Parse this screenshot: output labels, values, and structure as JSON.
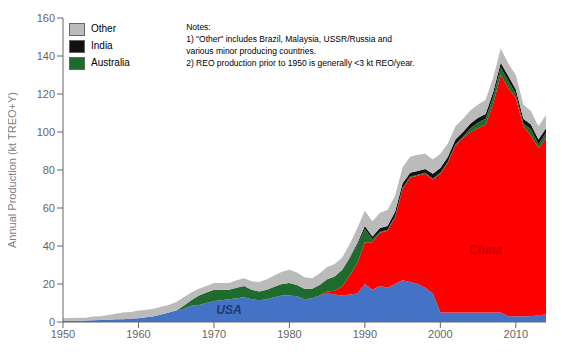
{
  "chart_data": {
    "type": "area",
    "stacked": true,
    "ylabel": "Annual  Production (kt TREO+Y)",
    "x": [
      1950,
      1951,
      1952,
      1953,
      1954,
      1955,
      1956,
      1957,
      1958,
      1959,
      1960,
      1961,
      1962,
      1963,
      1964,
      1965,
      1966,
      1967,
      1968,
      1969,
      1970,
      1971,
      1972,
      1973,
      1974,
      1975,
      1976,
      1977,
      1978,
      1979,
      1980,
      1981,
      1982,
      1983,
      1984,
      1985,
      1986,
      1987,
      1988,
      1989,
      1990,
      1991,
      1992,
      1993,
      1994,
      1995,
      1996,
      1997,
      1998,
      1999,
      2000,
      2001,
      2002,
      2003,
      2004,
      2005,
      2006,
      2007,
      2008,
      2009,
      2010,
      2011,
      2012,
      2013,
      2014
    ],
    "xlim": [
      1950,
      2014
    ],
    "xticks": [
      1950,
      1960,
      1970,
      1980,
      1990,
      2000,
      2010
    ],
    "ylim": [
      0,
      160
    ],
    "yticks": [
      0,
      20,
      40,
      60,
      80,
      100,
      120,
      140,
      160
    ],
    "grid": false,
    "legend": "upper left",
    "series": [
      {
        "color": "#4472C4",
        "values": [
          0.5,
          0.6,
          0.7,
          0.8,
          0.9,
          1.0,
          1.2,
          1.4,
          1.5,
          1.8,
          2.0,
          2.5,
          3.0,
          4.0,
          5.0,
          6.0,
          7.0,
          8.5,
          9.0,
          10.0,
          11.0,
          11.5,
          12.0,
          12.5,
          13.0,
          12.0,
          11.5,
          12.0,
          13.0,
          14.0,
          14.0,
          13.5,
          12.0,
          12.5,
          14.0,
          15.0,
          14.5,
          14.0,
          14.5,
          15.0,
          20.0,
          17.0,
          19.0,
          18.0,
          20.0,
          22.0,
          21.0,
          20.0,
          18.0,
          15.0,
          5.0,
          5.0,
          5.0,
          5.0,
          5.0,
          5.0,
          5.0,
          5.0,
          5.0,
          3.0,
          3.0,
          3.0,
          3.0,
          3.5,
          4.0
        ]
      },
      {
        "color": "#FF0000",
        "values": [
          0,
          0,
          0,
          0,
          0,
          0,
          0,
          0,
          0,
          0,
          0,
          0,
          0,
          0,
          0,
          0,
          0,
          0,
          0,
          0,
          0,
          0,
          0,
          0,
          0,
          0,
          0,
          0,
          0,
          0,
          0,
          0,
          0,
          0,
          0,
          1.0,
          2.0,
          5.0,
          10.0,
          16.0,
          22.0,
          25.0,
          28.0,
          30.0,
          35.0,
          48.0,
          55.0,
          57.0,
          60.0,
          60.0,
          73.0,
          79.0,
          88.0,
          92.0,
          95.0,
          97.0,
          99.0,
          110.0,
          125.0,
          120.0,
          115.0,
          100.0,
          95.0,
          88.0,
          93.0
        ]
      },
      {
        "name": "Australia",
        "color": "#1F6B2E",
        "values": [
          0,
          0,
          0,
          0,
          0,
          0,
          0,
          0,
          0,
          0,
          0,
          0,
          0,
          0,
          0,
          0,
          1.5,
          3.0,
          5.0,
          5.5,
          6.0,
          5.5,
          5.0,
          5.5,
          6.0,
          5.0,
          4.5,
          5.0,
          5.5,
          6.0,
          6.5,
          6.0,
          5.5,
          5.0,
          5.5,
          6.5,
          7.5,
          8.5,
          9.0,
          9.5,
          7.0,
          1.5,
          0.5,
          0.5,
          0.5,
          0.5,
          0.5,
          0.5,
          0.5,
          0.5,
          0.5,
          0.5,
          0.5,
          0.5,
          2.0,
          3.0,
          3.0,
          3.5,
          4.0,
          4.0,
          2.0,
          1.5,
          3.5,
          2.0,
          2.5
        ]
      },
      {
        "name": "India",
        "color": "#111111",
        "values": [
          0,
          0,
          0,
          0,
          0,
          0,
          0,
          0,
          0,
          0,
          0,
          0,
          0,
          0,
          0,
          0,
          0,
          0,
          0,
          0,
          0,
          0,
          0,
          0,
          0,
          0,
          0,
          0,
          0,
          0,
          0,
          0,
          0,
          0,
          0,
          0,
          0,
          0,
          0.5,
          1.0,
          1.5,
          1.5,
          2.0,
          2.0,
          2.5,
          2.5,
          2.0,
          2.0,
          2.0,
          2.5,
          2.5,
          2.5,
          2.5,
          2.5,
          2.5,
          2.5,
          2.5,
          2.5,
          2.5,
          2.5,
          2.5,
          2.5,
          2.5,
          2.5,
          2.5
        ]
      },
      {
        "name": "Other",
        "color": "#BBBBBB",
        "values": [
          1.5,
          1.5,
          1.5,
          1.5,
          2.0,
          2.0,
          2.5,
          3.0,
          3.5,
          3.5,
          4.0,
          4.0,
          4.0,
          4.0,
          4.0,
          4.5,
          4.5,
          4.0,
          3.5,
          3.5,
          3.5,
          3.5,
          3.5,
          4.0,
          4.0,
          4.5,
          5.0,
          5.5,
          6.0,
          6.5,
          7.0,
          6.5,
          6.0,
          5.5,
          6.0,
          6.5,
          6.5,
          6.5,
          7.0,
          8.0,
          8.0,
          8.0,
          8.0,
          8.5,
          8.5,
          8.5,
          8.5,
          8.5,
          8.0,
          7.5,
          7.5,
          7.0,
          7.0,
          7.0,
          7.0,
          7.0,
          7.5,
          7.5,
          7.5,
          6.5,
          7.5,
          7.5,
          7.0,
          7.0,
          7.0
        ]
      }
    ],
    "annotations": [
      {
        "text": "China",
        "x": 2006,
        "y": 38,
        "color": "#CC0000"
      },
      {
        "text": "USA",
        "x": 1972,
        "y": 6.5,
        "color": "#1a3a7a"
      },
      {
        "text": "Notes:\n1) \"Other\" includes Brazil, Malaysia, USSR/Russia and\nvarious minor producing countries.\n2) REO production prior to 1950 is generally <3 kt REO/year."
      }
    ]
  }
}
